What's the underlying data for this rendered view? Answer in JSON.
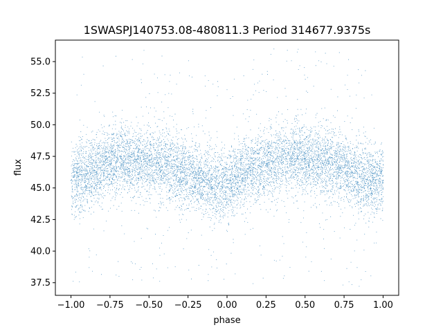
{
  "chart_data": {
    "type": "scatter",
    "title": "1SWASPJ140753.08-480811.3 Period 314677.9375s",
    "xlabel": "phase",
    "ylabel": "flux",
    "xlim": [
      -1.1,
      1.1
    ],
    "ylim": [
      36.5,
      56.7
    ],
    "xticks": [
      -1.0,
      -0.75,
      -0.5,
      -0.25,
      0.0,
      0.25,
      0.5,
      0.75,
      1.0
    ],
    "xtick_labels": [
      "−1.00",
      "−0.75",
      "−0.50",
      "−0.25",
      "0.00",
      "0.25",
      "0.50",
      "0.75",
      "1.00"
    ],
    "yticks": [
      37.5,
      40.0,
      42.5,
      45.0,
      47.5,
      50.0,
      52.5,
      55.0
    ],
    "ytick_labels": [
      "37.5",
      "40.0",
      "42.5",
      "45.0",
      "47.5",
      "50.0",
      "52.5",
      "55.0"
    ],
    "grid": false,
    "point_color": "#1f77b4",
    "series": [
      {
        "points": [
          [
            -1.0,
            45.6
          ],
          [
            -0.95,
            45.9
          ],
          [
            -0.9,
            46.1
          ],
          [
            -0.85,
            46.4
          ],
          [
            -0.8,
            46.8
          ],
          [
            -0.75,
            47.1
          ],
          [
            -0.7,
            47.3
          ],
          [
            -0.65,
            47.3
          ],
          [
            -0.6,
            47.2
          ],
          [
            -0.55,
            47.1
          ],
          [
            -0.5,
            47.0
          ],
          [
            -0.45,
            47.0
          ],
          [
            -0.4,
            46.9
          ],
          [
            -0.35,
            46.7
          ],
          [
            -0.3,
            46.5
          ],
          [
            -0.25,
            46.2
          ],
          [
            -0.2,
            45.8
          ],
          [
            -0.15,
            45.6
          ],
          [
            -0.1,
            45.5
          ],
          [
            -0.05,
            45.4
          ],
          [
            0.0,
            45.6
          ],
          [
            0.05,
            45.9
          ],
          [
            0.1,
            46.1
          ],
          [
            0.15,
            46.4
          ],
          [
            0.2,
            46.6
          ],
          [
            0.25,
            46.9
          ],
          [
            0.3,
            47.1
          ],
          [
            0.35,
            47.2
          ],
          [
            0.4,
            47.3
          ],
          [
            0.45,
            47.4
          ],
          [
            0.5,
            47.3
          ],
          [
            0.55,
            47.1
          ],
          [
            0.6,
            47.0
          ],
          [
            0.65,
            46.9
          ],
          [
            0.7,
            46.8
          ],
          [
            0.75,
            46.6
          ],
          [
            0.8,
            46.2
          ],
          [
            0.85,
            45.9
          ],
          [
            0.9,
            45.7
          ],
          [
            0.95,
            45.6
          ],
          [
            1.0,
            45.6
          ]
        ]
      }
    ]
  }
}
